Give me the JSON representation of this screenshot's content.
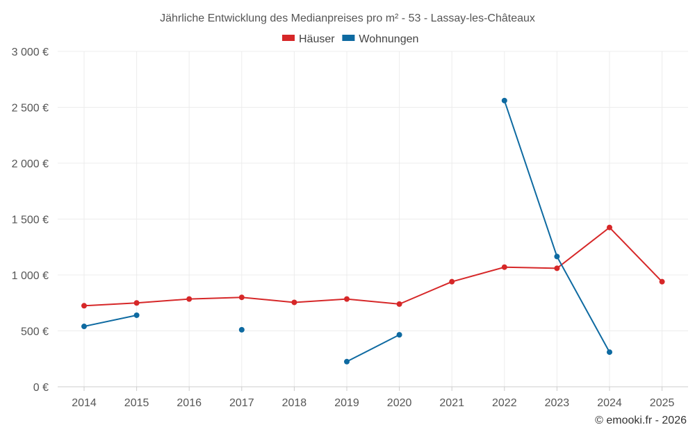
{
  "chart_data": {
    "type": "line",
    "title": "Jährliche Entwicklung des Medianpreises pro m² - 53 - Lassay-les-Châteaux",
    "xlabel": "",
    "ylabel": "",
    "ylim": [
      0,
      3000
    ],
    "y_ticks": [
      0,
      500,
      1000,
      1500,
      2000,
      2500,
      3000
    ],
    "y_tick_labels": [
      "0 €",
      "500 €",
      "1 000 €",
      "1 500 €",
      "2 000 €",
      "2 500 €",
      "3 000 €"
    ],
    "categories": [
      "2014",
      "2015",
      "2016",
      "2017",
      "2018",
      "2019",
      "2020",
      "2021",
      "2022",
      "2023",
      "2024",
      "2025"
    ],
    "legend_position": "top-center",
    "series": [
      {
        "name": "Häuser",
        "color": "#d62728",
        "values": [
          725,
          750,
          785,
          800,
          755,
          785,
          740,
          940,
          1070,
          1060,
          1425,
          940
        ]
      },
      {
        "name": "Wohnungen",
        "color": "#0e6aa1",
        "values": [
          540,
          640,
          null,
          510,
          null,
          225,
          465,
          null,
          2560,
          1165,
          310,
          null
        ]
      }
    ]
  },
  "credit": "© emooki.fr - 2026"
}
